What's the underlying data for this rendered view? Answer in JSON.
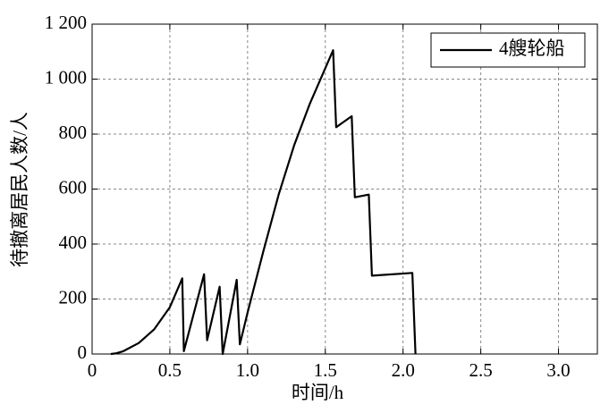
{
  "chart_data": {
    "type": "line",
    "xlabel": "时间/h",
    "ylabel": "待撤离居民人数/人",
    "series": [
      {
        "name": "4艘轮船",
        "color": "#000000",
        "x": [
          0.12,
          0.15,
          0.2,
          0.3,
          0.4,
          0.5,
          0.58,
          0.59,
          0.72,
          0.74,
          0.82,
          0.84,
          0.93,
          0.95,
          0.97,
          1.0,
          1.1,
          1.2,
          1.3,
          1.4,
          1.5,
          1.55,
          1.57,
          1.67,
          1.69,
          1.78,
          1.8,
          2.06,
          2.08
        ],
        "values": [
          0,
          2,
          10,
          40,
          90,
          170,
          275,
          10,
          290,
          50,
          245,
          0,
          270,
          35,
          80,
          150,
          370,
          580,
          760,
          910,
          1040,
          1105,
          825,
          865,
          570,
          580,
          285,
          295,
          0
        ]
      }
    ],
    "xlim": [
      0,
      3.25
    ],
    "ylim": [
      0,
      1200
    ],
    "xticks": [
      0,
      0.5,
      {
        "value": 1.0,
        "label": "1.0"
      },
      1.5,
      {
        "value": 2.0,
        "label": "2.0"
      },
      2.5,
      {
        "value": 3.0,
        "label": "3.0"
      }
    ],
    "yticks": [
      0,
      200,
      400,
      600,
      800,
      {
        "value": 1000,
        "label": "1 000"
      },
      {
        "value": 1200,
        "label": "1 200"
      }
    ],
    "grid": true,
    "legend": "upper right"
  }
}
